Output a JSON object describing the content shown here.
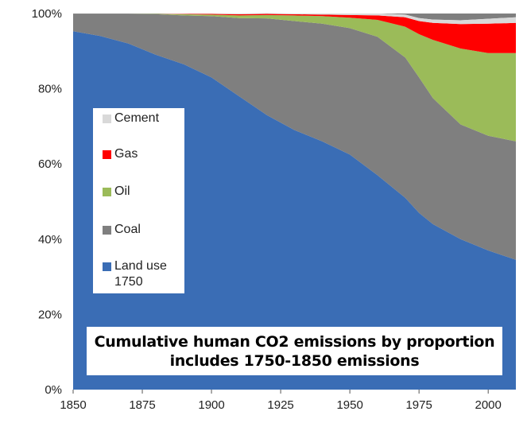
{
  "chart_data": {
    "type": "area",
    "stacked": "percent",
    "title": "Cumulative human CO2 emissions by proportion",
    "subtitle": "includes 1750-1850 emissions",
    "x": [
      1850,
      1860,
      1870,
      1880,
      1890,
      1900,
      1910,
      1920,
      1930,
      1940,
      1950,
      1960,
      1970,
      1975,
      1980,
      1990,
      2000,
      2010
    ],
    "xlim": [
      1850,
      2010
    ],
    "ylim": [
      0,
      100
    ],
    "x_ticks": [
      "1850",
      "1875",
      "1900",
      "1925",
      "1950",
      "1975",
      "2000"
    ],
    "y_ticks": [
      "0%",
      "20%",
      "40%",
      "60%",
      "80%",
      "100%"
    ],
    "series": [
      {
        "name": "Land use\n1750",
        "color": "#3a6db5",
        "values": [
          95.3,
          94.0,
          92.0,
          89.0,
          86.5,
          83.0,
          78.0,
          73.0,
          69.0,
          66.0,
          62.5,
          57.0,
          51.0,
          47.0,
          44.0,
          40.0,
          37.0,
          34.5
        ]
      },
      {
        "name": "Coal",
        "color": "#7f7f7f",
        "values": [
          4.5,
          5.8,
          7.8,
          10.8,
          13.0,
          16.3,
          20.8,
          25.7,
          29.0,
          31.3,
          33.6,
          36.8,
          37.3,
          36.0,
          33.5,
          30.5,
          30.5,
          31.5
        ]
      },
      {
        "name": "Oil",
        "color": "#9bbb59",
        "values": [
          0.0,
          0.0,
          0.0,
          0.1,
          0.3,
          0.4,
          0.7,
          0.9,
          1.5,
          2.0,
          2.8,
          4.5,
          8.2,
          11.5,
          15.5,
          20.2,
          22.0,
          23.5
        ]
      },
      {
        "name": "Gas",
        "color": "#ff0000",
        "values": [
          0.0,
          0.0,
          0.0,
          0.0,
          0.1,
          0.2,
          0.3,
          0.3,
          0.3,
          0.4,
          0.7,
          1.2,
          2.5,
          3.5,
          4.5,
          6.5,
          7.8,
          8.0
        ]
      },
      {
        "name": "Cement",
        "color": "#d9d9d9",
        "values": [
          0.0,
          0.0,
          0.0,
          0.0,
          0.1,
          0.1,
          0.2,
          0.2,
          0.2,
          0.3,
          0.4,
          0.5,
          0.7,
          0.8,
          0.9,
          1.0,
          1.3,
          1.5
        ]
      }
    ]
  }
}
